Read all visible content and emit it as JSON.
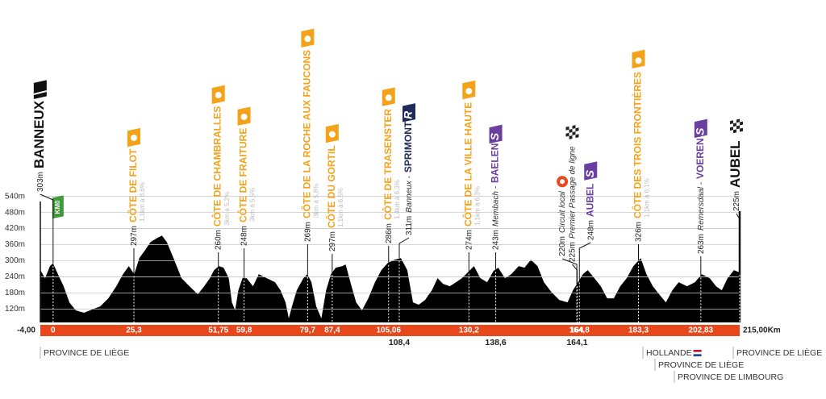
{
  "chart_data": {
    "type": "area",
    "color": "#000000",
    "xlim": [
      -4,
      215
    ],
    "ylim": [
      70,
      560
    ],
    "grid": true,
    "yticks": [
      {
        "value": 540,
        "label": "540m"
      },
      {
        "value": 480,
        "label": "480m"
      },
      {
        "value": 420,
        "label": "420m"
      },
      {
        "value": 360,
        "label": "360m"
      },
      {
        "value": 300,
        "label": "300m"
      },
      {
        "value": 240,
        "label": "240m"
      },
      {
        "value": 180,
        "label": "180m"
      },
      {
        "value": 120,
        "label": "120m"
      }
    ],
    "xticks": [
      {
        "value": -4,
        "label": "-4,00"
      },
      0,
      {
        "value": 25.3,
        "label": "25,3"
      },
      {
        "value": 51.75,
        "label": "51,75"
      },
      {
        "value": 59.8,
        "label": "59,8"
      },
      {
        "value": 79.7,
        "label": "79,7"
      },
      {
        "value": 87.4,
        "label": "87,4"
      },
      {
        "value": 105.06,
        "label": "105,06"
      },
      {
        "value": 130.2,
        "label": "130,2"
      },
      164,
      {
        "value": 164.8,
        "label": "164,8"
      },
      {
        "value": 183.3,
        "label": "183,3"
      },
      {
        "value": 202.83,
        "label": "202,83"
      },
      {
        "value": 215,
        "label": "215,00Km"
      }
    ],
    "xticks_below": [
      {
        "value": 108.4,
        "label": "108,4"
      },
      {
        "value": 138.6,
        "label": "138,6"
      },
      {
        "value": 164.1,
        "label": "164,1"
      }
    ],
    "x": [
      -4.0,
      -2.5,
      -1.0,
      0,
      1.5,
      3.3,
      5.1,
      7.1,
      9.7,
      12.2,
      14.8,
      17.3,
      19.8,
      21.9,
      23.7,
      25.4,
      27.0,
      28.8,
      30.5,
      32.6,
      34.1,
      35.6,
      37.7,
      40.2,
      42.7,
      45.3,
      47.3,
      49.1,
      50.4,
      51.9,
      53.4,
      55.0,
      56.0,
      57.0,
      58.0,
      59.3,
      60.6,
      62.6,
      64.4,
      66.9,
      69.5,
      71.2,
      72.8,
      73.8,
      74.8,
      76.3,
      78.4,
      79.6,
      80.9,
      82.4,
      84.0,
      85.5,
      87.0,
      88.5,
      90.6,
      91.6,
      93.1,
      94.9,
      96.7,
      98.7,
      100.8,
      102.8,
      104.8,
      106.9,
      108.9,
      110.9,
      112.7,
      114.5,
      116.5,
      118.6,
      120.4,
      122.1,
      124.2,
      126.2,
      128.0,
      129.8,
      131.8,
      133.8,
      135.9,
      137.9,
      139.4,
      141.5,
      143.5,
      145.8,
      147.6,
      149.6,
      151.7,
      153.7,
      156.0,
      158.5,
      161.1,
      162.8,
      164.4,
      165.9,
      167.4,
      169.5,
      171.5,
      173.5,
      175.6,
      177.6,
      179.6,
      181.7,
      184.0,
      185.8,
      187.8,
      189.8,
      191.9,
      193.9,
      195.9,
      198.5,
      201.0,
      203.1,
      205.6,
      207.6,
      209.4,
      211.2,
      213.2,
      215.0
    ],
    "values": [
      265,
      235,
      280,
      290,
      250,
      205,
      145,
      115,
      106,
      118,
      130,
      160,
      205,
      250,
      280,
      250,
      310,
      340,
      370,
      385,
      394,
      370,
      310,
      235,
      205,
      175,
      205,
      235,
      265,
      280,
      274,
      235,
      145,
      115,
      190,
      235,
      235,
      205,
      250,
      235,
      220,
      190,
      145,
      85,
      130,
      190,
      235,
      250,
      220,
      130,
      85,
      190,
      250,
      274,
      280,
      286,
      220,
      145,
      115,
      160,
      220,
      265,
      292,
      304,
      310,
      265,
      145,
      136,
      154,
      190,
      235,
      214,
      205,
      220,
      235,
      256,
      280,
      235,
      220,
      262,
      274,
      235,
      250,
      280,
      274,
      304,
      280,
      220,
      184,
      154,
      145,
      190,
      220,
      250,
      265,
      235,
      205,
      160,
      160,
      205,
      235,
      280,
      310,
      250,
      205,
      175,
      145,
      190,
      220,
      205,
      220,
      250,
      235,
      205,
      190,
      235,
      265,
      256
    ],
    "km0_badge": "KM0",
    "annotations": [
      {
        "km": 0,
        "altitude": "303m",
        "name": "BANNEUX",
        "color": "#111111"
      },
      {
        "km": 25.3,
        "altitude": "297m",
        "name": "CÔTE DE FILOT",
        "detail": "1,1km à 8,6%",
        "color": "#f5a21b"
      },
      {
        "km": 51.75,
        "altitude": "260m",
        "name": "CÔTE DE CHAMBRALLES",
        "detail": "3km à 5,2%",
        "color": "#f5a21b"
      },
      {
        "km": 59.8,
        "altitude": "248m",
        "name": "CÔTE DE FRAITURE",
        "detail": "3km à 5,5%",
        "color": "#f5a21b"
      },
      {
        "km": 79.7,
        "altitude": "269m",
        "name": "CÔTE DE LA ROCHE AUX FAUCONS",
        "detail": "3km à 5,8%",
        "color": "#f5a21b"
      },
      {
        "km": 87.4,
        "altitude": "297m",
        "name": "CÔTE DU GORTIL",
        "detail": "1,1km à 6,5%",
        "color": "#f5a21b"
      },
      {
        "km": 105.06,
        "altitude": "286m",
        "name": "CÔTE DE TRASENSTER",
        "detail": "1,4km à 6,3%",
        "color": "#f5a21b"
      },
      {
        "km": 108.4,
        "altitude": "311m",
        "place": "Banneux -",
        "name": "SPRIMONT",
        "badge": "R",
        "color": "#1f2a5a"
      },
      {
        "km": 130.2,
        "altitude": "274m",
        "name": "CÔTE DE LA VILLE HAUTE",
        "detail": "1,1km à 6,3%",
        "color": "#f5a21b"
      },
      {
        "km": 138.6,
        "altitude": "243m",
        "place": "Membach -",
        "name": "BAELEN",
        "badge": "S",
        "color": "#6b3fa0"
      },
      {
        "km": 164,
        "altitude": "220m",
        "place": "Circuit local",
        "color": "#e8461b"
      },
      {
        "km": 164.1,
        "altitude": "225m",
        "place": "Premier Passage de ligne",
        "color": "#111111"
      },
      {
        "km": 164.8,
        "altitude": "248m",
        "name": "AUBEL",
        "badge": "S",
        "color": "#6b3fa0"
      },
      {
        "km": 183.3,
        "altitude": "326m",
        "name": "CÔTE DES TROIS FRONTIÈRES",
        "detail": "1,1km à 6,1%",
        "color": "#f5a21b"
      },
      {
        "km": 202.83,
        "altitude": "263m",
        "place": "Remersdaal -",
        "name": "VOEREN",
        "badge": "S",
        "color": "#6b3fa0"
      },
      {
        "km": 215,
        "altitude": "225m",
        "name": "AUBEL",
        "color": "#111111"
      }
    ],
    "regions": [
      "PROVINCE DE LIÈGE",
      "HOLLANDE",
      "PROVINCE DE LIÈGE",
      "PROVINCE DE LIMBOURG",
      "PROVINCE DE LIÈGE"
    ]
  }
}
